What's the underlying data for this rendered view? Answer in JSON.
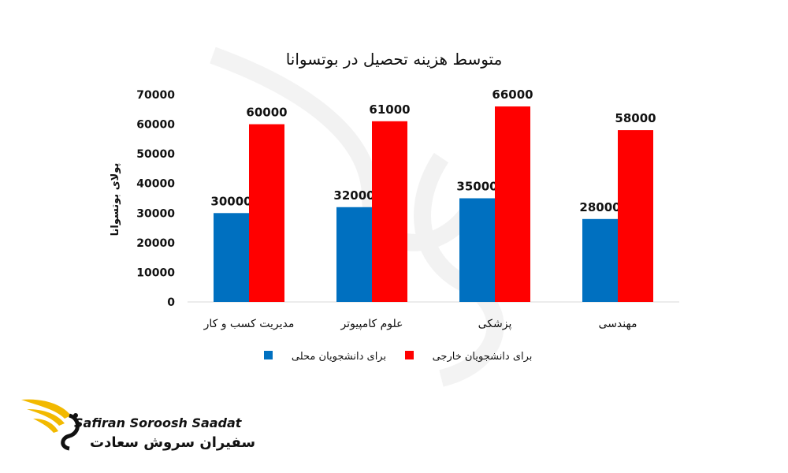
{
  "colors": {
    "local": "#0070C0",
    "foreign": "#FF0000",
    "gold": "#F2B900"
  },
  "chart_data": {
    "type": "bar",
    "title": "متوسط هزینه تحصیل در بوتسوانا",
    "ylabel": "پولای بوتسوانا",
    "xlabel": "",
    "ylim": [
      0,
      70000
    ],
    "yticks": [
      0,
      10000,
      20000,
      30000,
      40000,
      50000,
      60000,
      70000
    ],
    "grid": false,
    "legend_position": "bottom",
    "categories": [
      "مدیریت کسب و کار",
      "علوم کامپیوتر",
      "پزشکی",
      "مهندسی"
    ],
    "series": [
      {
        "name": "برای دانشجویان محلی",
        "values": [
          30000,
          32000,
          35000,
          28000
        ]
      },
      {
        "name": "برای دانشجویان خارجی",
        "values": [
          60000,
          61000,
          66000,
          58000
        ]
      }
    ]
  },
  "logo": {
    "english": "Safiran Soroosh Saadat",
    "persian": "سفیران سروش سعادت"
  }
}
